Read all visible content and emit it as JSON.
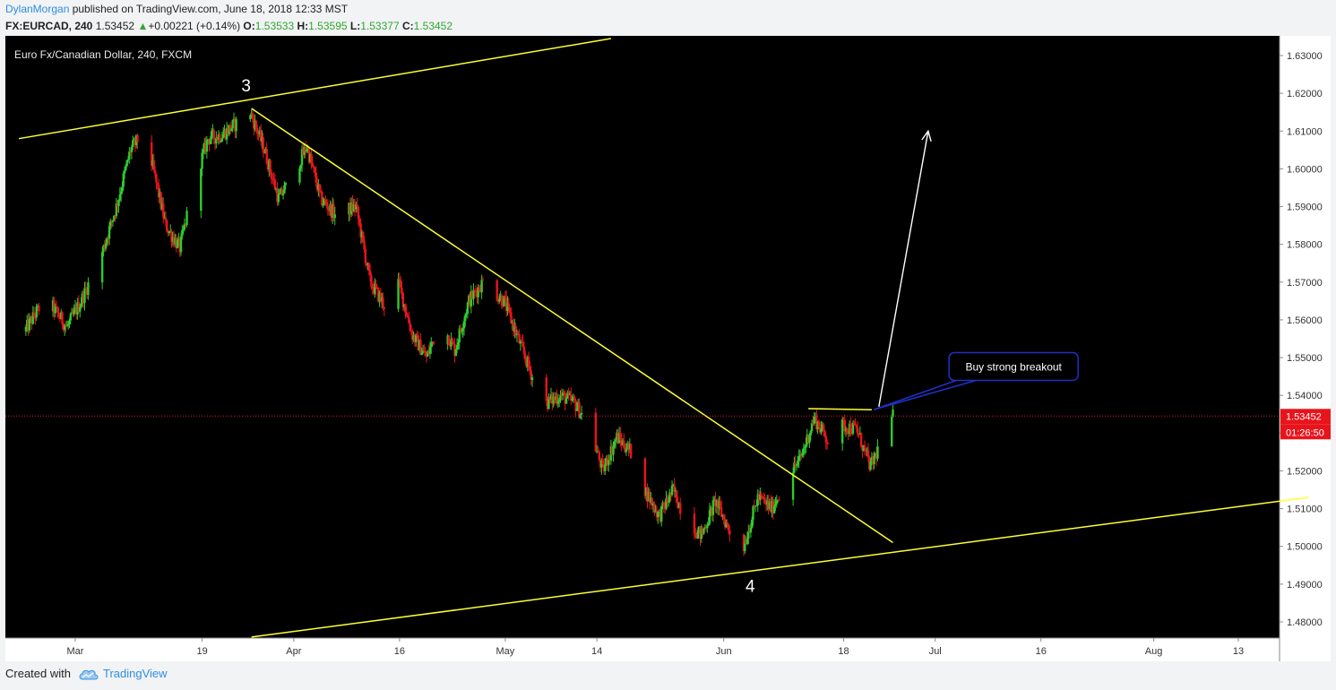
{
  "header": {
    "author": "DylanMorgan",
    "published_text": " published on TradingView.com, June 18, 2018 12:33 MST",
    "symbol": "FX:EURCAD, 240",
    "last": "1.53452",
    "change_arrow": "▲",
    "change": "+0.00221 (+0.14%)",
    "o_label": "O:",
    "o_value": "1.53533",
    "h_label": "H:",
    "h_value": "1.53595",
    "l_label": "L:",
    "l_value": "1.53377",
    "c_label": "C:",
    "c_value": "1.53452"
  },
  "footer": {
    "created_with": "Created with",
    "brand": "TradingView",
    "brand_icon": "tradingview-cloud-icon"
  },
  "colors": {
    "background": "#000000",
    "up": "#2ecc2e",
    "down": "#e8141c",
    "trendline": "#ffff33",
    "arrow": "#ffffff",
    "price_tag": "#e8141c",
    "callout_border": "#2030c8"
  },
  "chart_data": {
    "type": "candlestick",
    "title": "Euro Fx/Canadian Dollar, 240, FXCM",
    "ylim": [
      1.475,
      1.635
    ],
    "y_ticks": [
      "1.63000",
      "1.62000",
      "1.61000",
      "1.60000",
      "1.59000",
      "1.58000",
      "1.57000",
      "1.56000",
      "1.55000",
      "1.54000",
      "1.53000",
      "1.52000",
      "1.51000",
      "1.50000",
      "1.49000",
      "1.48000"
    ],
    "x_ticks": [
      {
        "label": "Mar",
        "x": "2018-03-01"
      },
      {
        "label": "19",
        "x": "2018-03-19"
      },
      {
        "label": "Apr",
        "x": "2018-04-01"
      },
      {
        "label": "16",
        "x": "2018-04-16"
      },
      {
        "label": "May",
        "x": "2018-05-01"
      },
      {
        "label": "14",
        "x": "2018-05-14"
      },
      {
        "label": "Jun",
        "x": "2018-06-01"
      },
      {
        "label": "18",
        "x": "2018-06-18"
      },
      {
        "label": "Jul",
        "x": "2018-07-01"
      },
      {
        "label": "16",
        "x": "2018-07-16"
      },
      {
        "label": "Aug",
        "x": "2018-08-01"
      },
      {
        "label": "13",
        "x": "2018-08-13"
      }
    ],
    "path": [
      [
        "2018-02-22",
        1.557
      ],
      [
        "2018-02-25",
        1.566
      ],
      [
        "2018-02-28",
        1.558
      ],
      [
        "2018-03-02",
        1.565
      ],
      [
        "2018-03-05",
        1.578
      ],
      [
        "2018-03-07",
        1.59
      ],
      [
        "2018-03-09",
        1.605
      ],
      [
        "2018-03-11",
        1.61
      ],
      [
        "2018-03-14",
        1.585
      ],
      [
        "2018-03-16",
        1.579
      ],
      [
        "2018-03-18",
        1.596
      ],
      [
        "2018-03-20",
        1.608
      ],
      [
        "2018-03-22",
        1.609
      ],
      [
        "2018-03-26",
        1.615
      ],
      [
        "2018-03-28",
        1.605
      ],
      [
        "2018-03-30",
        1.592
      ],
      [
        "2018-04-01",
        1.598
      ],
      [
        "2018-04-03",
        1.606
      ],
      [
        "2018-04-05",
        1.592
      ],
      [
        "2018-04-07",
        1.588
      ],
      [
        "2018-04-10",
        1.59
      ],
      [
        "2018-04-12",
        1.57
      ],
      [
        "2018-04-14",
        1.564
      ],
      [
        "2018-04-16",
        1.57
      ],
      [
        "2018-04-18",
        1.556
      ],
      [
        "2018-04-20",
        1.55
      ],
      [
        "2018-04-22",
        1.56
      ],
      [
        "2018-04-24",
        1.552
      ],
      [
        "2018-04-26",
        1.565
      ],
      [
        "2018-04-28",
        1.57
      ],
      [
        "2018-05-01",
        1.565
      ],
      [
        "2018-05-03",
        1.555
      ],
      [
        "2018-05-05",
        1.545
      ],
      [
        "2018-05-07",
        1.538
      ],
      [
        "2018-05-09",
        1.54
      ],
      [
        "2018-05-11",
        1.538
      ],
      [
        "2018-05-13",
        1.532
      ],
      [
        "2018-05-15",
        1.52
      ],
      [
        "2018-05-17",
        1.529
      ],
      [
        "2018-05-19",
        1.525
      ],
      [
        "2018-05-21",
        1.515
      ],
      [
        "2018-05-23",
        1.508
      ],
      [
        "2018-05-25",
        1.515
      ],
      [
        "2018-05-27",
        1.506
      ],
      [
        "2018-05-29",
        1.503
      ],
      [
        "2018-05-31",
        1.512
      ],
      [
        "2018-06-02",
        1.504
      ],
      [
        "2018-06-04",
        1.5
      ],
      [
        "2018-06-06",
        1.513
      ],
      [
        "2018-06-08",
        1.51
      ],
      [
        "2018-06-10",
        1.518
      ],
      [
        "2018-06-12",
        1.523
      ],
      [
        "2018-06-14",
        1.534
      ],
      [
        "2018-06-16",
        1.528
      ],
      [
        "2018-06-18",
        1.532
      ],
      [
        "2018-06-20",
        1.531
      ],
      [
        "2018-06-22",
        1.521
      ],
      [
        "2018-06-24",
        1.53
      ],
      [
        "2018-06-25",
        1.5345
      ]
    ],
    "last_price": "1.53452",
    "countdown": "01:26:50",
    "annotations": [
      {
        "text": "3",
        "x": "2018-03-26",
        "y": 1.6205
      },
      {
        "text": "4",
        "x": "2018-06-04",
        "y": 1.488
      },
      {
        "text": "Buy strong breakout",
        "x": "2018-07-05",
        "y": 1.548
      }
    ],
    "trendlines": [
      {
        "name": "upper-channel",
        "from": [
          "2018-02-21",
          1.608
        ],
        "to": [
          "2018-05-16",
          1.6345
        ]
      },
      {
        "name": "lower-channel",
        "from": [
          "2018-03-26",
          1.476
        ],
        "to": [
          "2018-08-23",
          1.513
        ]
      },
      {
        "name": "descending-trendline",
        "from": [
          "2018-03-26",
          1.616
        ],
        "to": [
          "2018-06-25",
          1.501
        ]
      },
      {
        "name": "breakout-resistance",
        "from": [
          "2018-06-13",
          1.5365
        ],
        "to": [
          "2018-06-22",
          1.5362
        ]
      }
    ],
    "arrow": {
      "from": [
        "2018-06-23",
        1.537
      ],
      "to": [
        "2018-06-30",
        1.61
      ]
    }
  }
}
